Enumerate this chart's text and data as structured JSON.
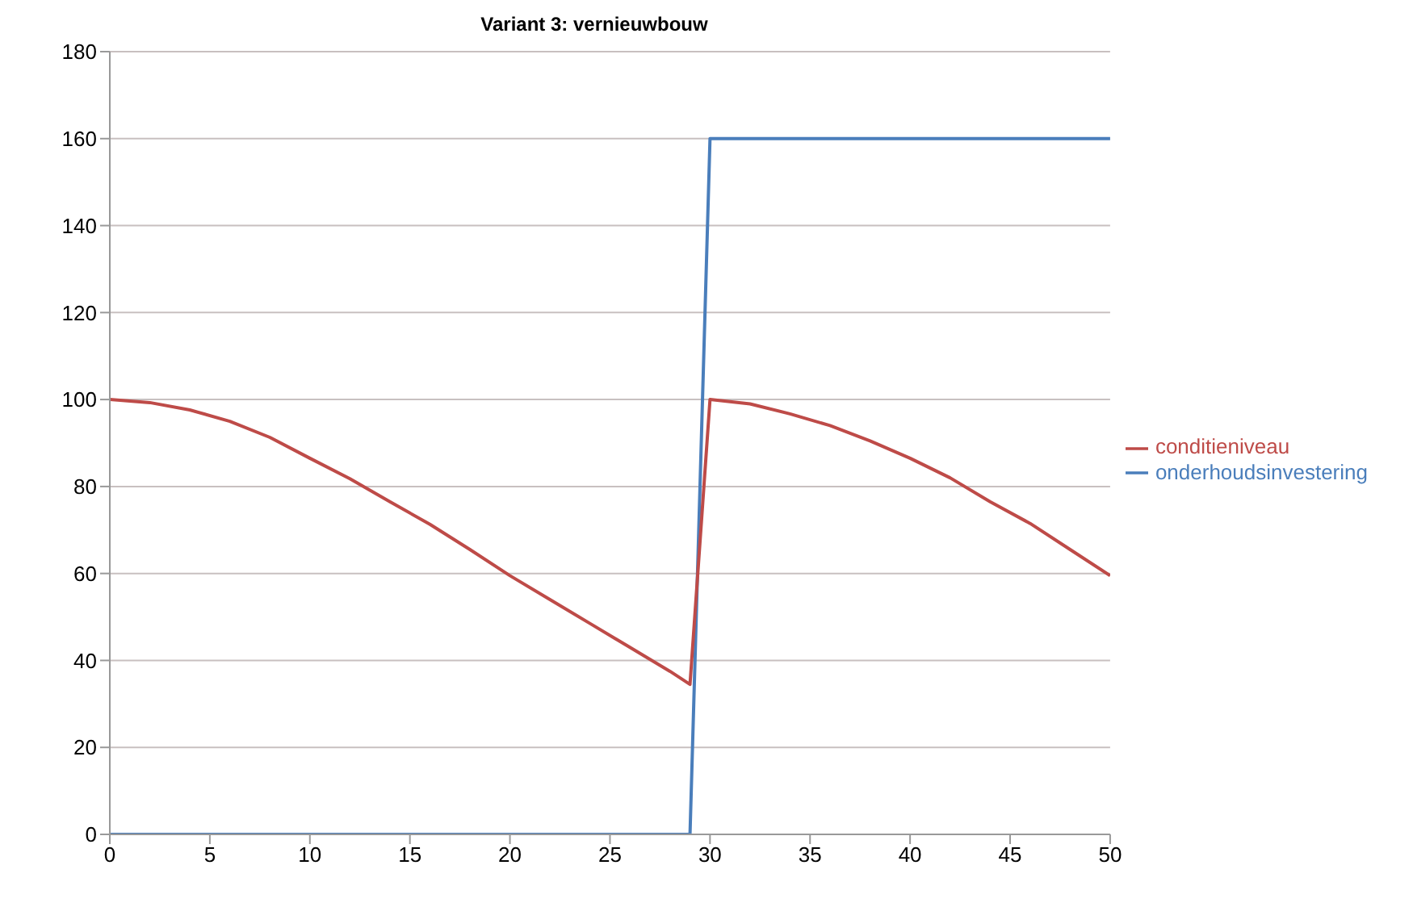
{
  "chart_data": {
    "type": "line",
    "title": "Variant 3: vernieuwbouw",
    "xlim": [
      0,
      50
    ],
    "xticks": [
      0,
      5,
      10,
      15,
      20,
      25,
      30,
      35,
      40,
      45,
      50
    ],
    "ylim": [
      0,
      180
    ],
    "yticks": [
      0,
      20,
      40,
      60,
      80,
      100,
      120,
      140,
      160,
      180
    ],
    "grid": "y",
    "legend": "right",
    "marker": "none",
    "line_style": "solid",
    "series": [
      {
        "name": "onderhoudsinvestering",
        "color": "#4a7ebb",
        "x": [
          0,
          29,
          30,
          50
        ],
        "values": [
          0,
          0,
          160,
          160
        ]
      },
      {
        "name": "conditieniveau",
        "color": "#be4b48",
        "x": [
          0,
          2,
          4,
          6,
          8,
          10,
          12,
          14,
          16,
          18,
          20,
          22,
          24,
          26,
          28,
          29,
          30,
          32,
          34,
          36,
          38,
          40,
          42,
          44,
          46,
          48,
          50
        ],
        "values": [
          100,
          99.3,
          97.6,
          95,
          91.3,
          86.5,
          81.8,
          76.5,
          71.3,
          65.5,
          59.5,
          54,
          48.5,
          43,
          37.5,
          34.5,
          100,
          99,
          96.7,
          94,
          90.5,
          86.5,
          82,
          76.5,
          71.5,
          65.5,
          59.5
        ]
      }
    ]
  }
}
